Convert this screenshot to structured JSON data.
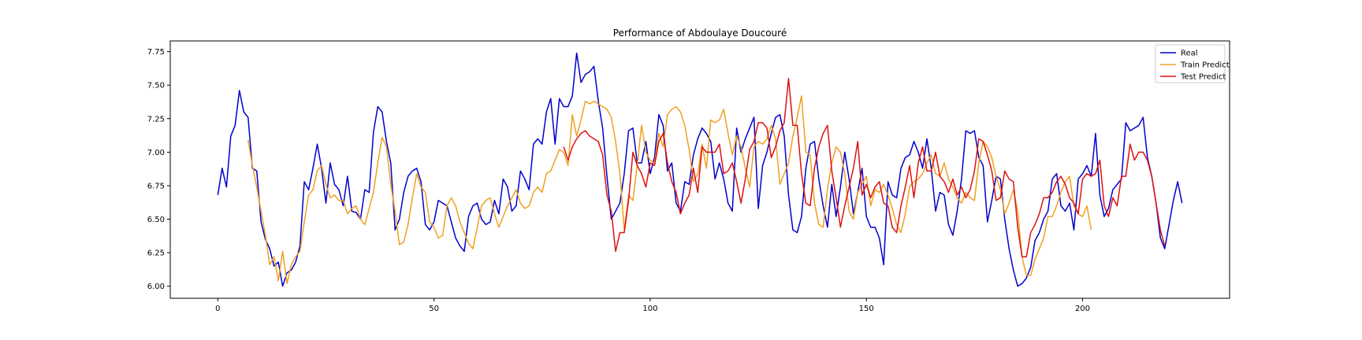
{
  "chart_data": {
    "type": "line",
    "title": "Performance of Abdoulaye Doucouré",
    "xlabel": "",
    "ylabel": "",
    "xlim": [
      -11,
      234
    ],
    "ylim": [
      5.91,
      7.83
    ],
    "xticks": [
      0,
      50,
      100,
      150,
      200
    ],
    "yticks": [
      6.0,
      6.25,
      6.5,
      6.75,
      7.0,
      7.25,
      7.5,
      7.75
    ],
    "grid": false,
    "legend_position": "top-right",
    "series": [
      {
        "name": "Real",
        "color": "#0000cc",
        "start_x": 0,
        "values": [
          6.68,
          6.88,
          6.74,
          7.12,
          7.2,
          7.46,
          7.3,
          7.26,
          6.88,
          6.86,
          6.48,
          6.35,
          6.28,
          6.15,
          6.18,
          6.0,
          6.1,
          6.12,
          6.18,
          6.3,
          6.78,
          6.72,
          6.88,
          7.06,
          6.88,
          6.62,
          6.92,
          6.76,
          6.72,
          6.6,
          6.82,
          6.56,
          6.55,
          6.5,
          6.72,
          6.7,
          7.15,
          7.34,
          7.3,
          7.08,
          6.92,
          6.42,
          6.5,
          6.7,
          6.82,
          6.86,
          6.88,
          6.78,
          6.46,
          6.42,
          6.48,
          6.64,
          6.62,
          6.6,
          6.48,
          6.36,
          6.3,
          6.26,
          6.52,
          6.6,
          6.62,
          6.5,
          6.46,
          6.48,
          6.64,
          6.54,
          6.8,
          6.74,
          6.56,
          6.6,
          6.86,
          6.8,
          6.72,
          7.06,
          7.1,
          7.06,
          7.3,
          7.4,
          7.06,
          7.4,
          7.34,
          7.34,
          7.42,
          7.74,
          7.52,
          7.58,
          7.6,
          7.64,
          7.38,
          7.18,
          6.82,
          6.5,
          6.56,
          6.62,
          6.84,
          7.16,
          7.18,
          6.92,
          6.92,
          7.08,
          6.84,
          6.96,
          7.28,
          7.2,
          6.86,
          6.92,
          6.62,
          6.56,
          6.78,
          6.76,
          6.98,
          7.1,
          7.18,
          7.14,
          7.08,
          6.8,
          6.92,
          6.8,
          6.62,
          6.56,
          7.18,
          7.0,
          7.1,
          7.18,
          7.26,
          6.58,
          6.9,
          7.0,
          7.14,
          7.26,
          7.28,
          7.12,
          6.68,
          6.42,
          6.4,
          6.52,
          6.88,
          7.06,
          7.08,
          6.8,
          6.6,
          6.44,
          6.76,
          6.52,
          6.74,
          7.0,
          6.8,
          6.54,
          6.7,
          6.88,
          6.52,
          6.44,
          6.44,
          6.36,
          6.16,
          6.78,
          6.68,
          6.66,
          6.88,
          6.96,
          6.98,
          7.08,
          7.0,
          6.88,
          7.1,
          6.88,
          6.56,
          6.7,
          6.68,
          6.46,
          6.38,
          6.56,
          6.8,
          7.16,
          7.14,
          7.16,
          6.96,
          6.9,
          6.48,
          6.64,
          6.82,
          6.8,
          6.5,
          6.28,
          6.12,
          6.0,
          6.02,
          6.06,
          6.14,
          6.34,
          6.4,
          6.5,
          6.56,
          6.8,
          6.84,
          6.6,
          6.56,
          6.62,
          6.42,
          6.8,
          6.84,
          6.9,
          6.82,
          7.14,
          6.68,
          6.52,
          6.58,
          6.72,
          6.76,
          6.8,
          7.22,
          7.16,
          7.18,
          7.2,
          7.26,
          6.96,
          6.82,
          6.62,
          6.36,
          6.28,
          6.46,
          6.64,
          6.78,
          6.62
        ]
      },
      {
        "name": "Train Predict",
        "color": "#f0a020",
        "start_x": 7,
        "values": [
          7.09,
          6.9,
          6.74,
          6.56,
          6.38,
          6.16,
          6.22,
          6.04,
          6.26,
          6.02,
          6.16,
          6.22,
          6.26,
          6.48,
          6.68,
          6.72,
          6.86,
          6.9,
          6.76,
          6.66,
          6.68,
          6.64,
          6.64,
          6.54,
          6.58,
          6.6,
          6.5,
          6.46,
          6.58,
          6.7,
          6.92,
          7.11,
          7.04,
          6.76,
          6.56,
          6.31,
          6.33,
          6.46,
          6.66,
          6.84,
          6.74,
          6.7,
          6.48,
          6.44,
          6.36,
          6.38,
          6.6,
          6.66,
          6.6,
          6.48,
          6.4,
          6.32,
          6.28,
          6.44,
          6.6,
          6.64,
          6.66,
          6.54,
          6.44,
          6.52,
          6.6,
          6.66,
          6.72,
          6.62,
          6.58,
          6.6,
          6.7,
          6.74,
          6.7,
          6.84,
          6.86,
          6.94,
          7.02,
          7.0,
          6.9,
          7.28,
          7.12,
          7.24,
          7.38,
          7.36,
          7.38,
          7.36,
          7.34,
          7.32,
          7.26,
          7.08,
          6.84,
          6.42,
          6.68,
          6.64,
          6.9,
          7.2,
          7.0,
          6.94,
          6.92,
          7.14,
          7.04,
          7.28,
          7.32,
          7.34,
          7.3,
          7.2,
          7.02,
          6.78,
          6.84,
          7.06,
          6.88,
          7.24,
          7.22,
          7.24,
          7.32,
          7.14,
          6.98,
          7.12,
          7.04,
          6.88,
          6.74,
          7.04,
          7.08,
          7.06,
          7.1,
          7.2,
          7.1,
          6.76,
          6.84,
          6.92,
          7.12,
          7.26,
          7.42,
          7.0,
          6.98,
          6.62,
          6.46,
          6.44,
          6.72,
          6.92,
          7.04,
          7.0,
          6.84,
          6.56,
          6.5,
          6.7,
          6.76,
          6.82,
          6.6,
          6.72,
          6.7,
          6.76,
          6.68,
          6.58,
          6.46,
          6.4,
          6.54,
          6.74,
          6.78,
          6.8,
          6.84,
          6.92,
          6.98,
          6.84,
          6.82,
          6.92,
          6.8,
          6.74,
          6.66,
          6.62,
          6.7,
          6.66,
          6.64,
          6.92,
          7.08,
          7.04,
          6.96,
          6.82,
          6.72,
          6.54,
          6.62,
          6.72,
          6.56,
          6.22,
          6.08,
          6.08,
          6.2,
          6.28,
          6.36,
          6.52,
          6.52,
          6.6,
          6.7,
          6.78,
          6.82,
          6.6,
          6.54,
          6.52,
          6.6,
          6.42
        ]
      },
      {
        "name": "Test Predict",
        "color": "#dd1111",
        "start_x": 80,
        "values": [
          7.04,
          6.94,
          7.04,
          7.1,
          7.14,
          7.16,
          7.12,
          7.1,
          7.08,
          6.98,
          6.68,
          6.56,
          6.26,
          6.4,
          6.4,
          6.64,
          7.0,
          6.9,
          6.84,
          6.74,
          6.92,
          6.9,
          7.08,
          7.14,
          6.92,
          6.78,
          6.7,
          6.54,
          6.62,
          6.68,
          6.88,
          6.7,
          7.04,
          7.0,
          7.0,
          7.0,
          7.06,
          6.84,
          6.86,
          6.92,
          6.78,
          6.62,
          6.8,
          7.02,
          7.08,
          7.22,
          7.22,
          7.18,
          6.96,
          7.04,
          7.16,
          7.22,
          7.55,
          7.2,
          7.2,
          6.84,
          6.62,
          6.6,
          6.88,
          7.04,
          7.14,
          7.2,
          6.86,
          6.66,
          6.44,
          6.6,
          6.74,
          6.88,
          7.08,
          6.68,
          6.76,
          6.66,
          6.74,
          6.78,
          6.62,
          6.6,
          6.44,
          6.4,
          6.6,
          6.74,
          6.9,
          6.66,
          6.92,
          7.04,
          6.86,
          6.86,
          7.0,
          6.82,
          6.78,
          6.7,
          6.8,
          6.68,
          6.74,
          6.66,
          6.72,
          6.86,
          7.1,
          7.08,
          6.98,
          6.86,
          6.64,
          6.66,
          6.86,
          6.8,
          6.78,
          6.44,
          6.22,
          6.22,
          6.4,
          6.46,
          6.54,
          6.66,
          6.66,
          6.7,
          6.78,
          6.82,
          6.76,
          6.66,
          6.62,
          6.54,
          6.8,
          6.84,
          6.82,
          6.84,
          6.94,
          6.6,
          6.52,
          6.66,
          6.6,
          6.82,
          6.82,
          7.06,
          6.94,
          7.0,
          7.0,
          6.94,
          6.82,
          6.62,
          6.42,
          6.3
        ]
      }
    ]
  }
}
